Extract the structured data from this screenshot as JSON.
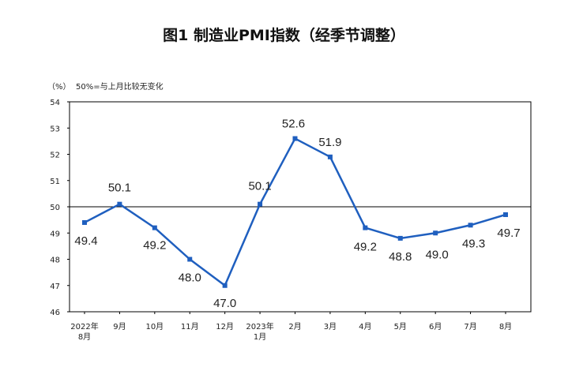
{
  "chart_data": {
    "type": "line",
    "title": "图1 制造业PMI指数（经季节调整）",
    "unit_label": "（%）",
    "note": "50%=与上月比较无变化",
    "categories": [
      [
        "2022年",
        "8月"
      ],
      [
        "9月"
      ],
      [
        "10月"
      ],
      [
        "11月"
      ],
      [
        "12月"
      ],
      [
        "2023年",
        "1月"
      ],
      [
        "2月"
      ],
      [
        "3月"
      ],
      [
        "4月"
      ],
      [
        "5月"
      ],
      [
        "6月"
      ],
      [
        "7月"
      ],
      [
        "8月"
      ]
    ],
    "series": [
      {
        "values": [
          49.4,
          50.1,
          49.2,
          48.0,
          47.0,
          50.1,
          52.6,
          51.9,
          49.2,
          48.8,
          49.0,
          49.3,
          49.7
        ]
      }
    ],
    "data_labels": [
      "49.4",
      "50.1",
      "49.2",
      "48.0",
      "47.0",
      "50.1",
      "52.6",
      "51.9",
      "49.2",
      "48.8",
      "49.0",
      "49.3",
      "49.7"
    ],
    "ylim": [
      46,
      54
    ],
    "yticks": [
      46,
      47,
      48,
      49,
      50,
      51,
      52,
      53,
      54
    ],
    "reference_line": 50,
    "line_color": "#1f5fbf",
    "grid": false,
    "legend": "none"
  }
}
